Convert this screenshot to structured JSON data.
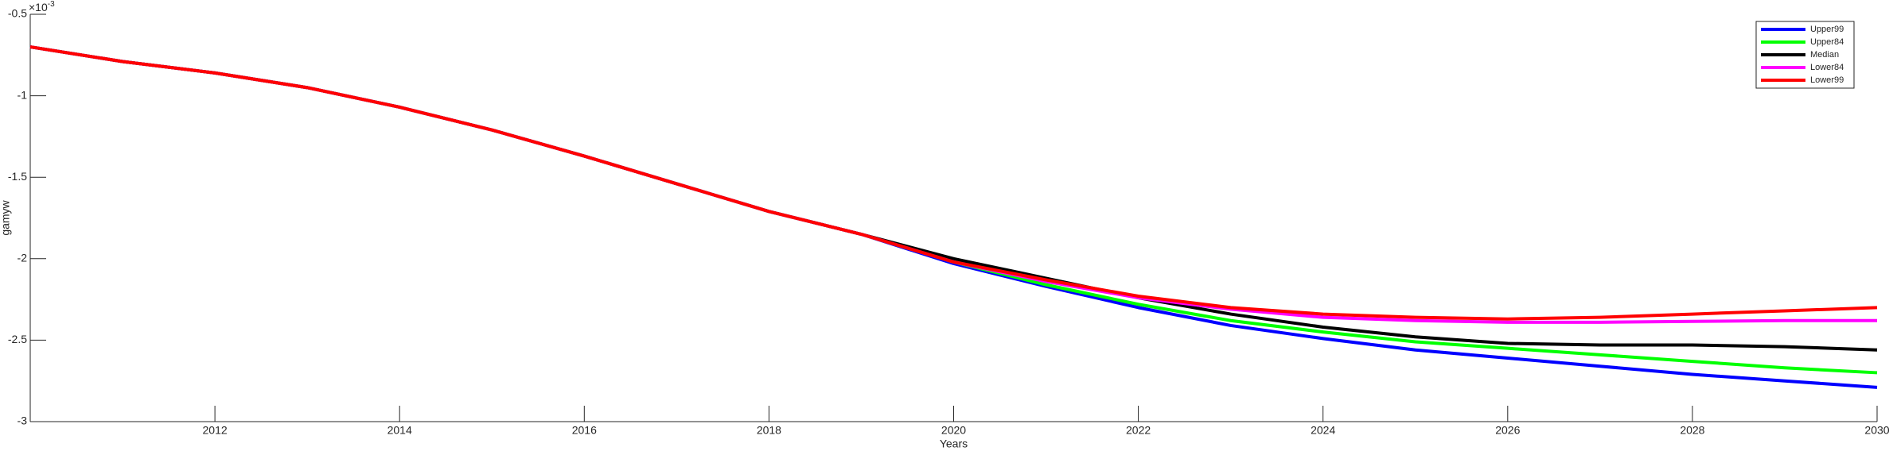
{
  "chart_data": {
    "type": "line",
    "x": [
      2010,
      2011,
      2012,
      2013,
      2014,
      2015,
      2016,
      2017,
      2018,
      2019,
      2020,
      2021,
      2022,
      2023,
      2024,
      2025,
      2026,
      2027,
      2028,
      2029,
      2030
    ],
    "series": [
      {
        "name": "Upper99",
        "color": "#0000ff",
        "values": [
          -0.7,
          -0.79,
          -0.86,
          -0.95,
          -1.07,
          -1.21,
          -1.37,
          -1.54,
          -1.71,
          -1.85,
          -2.03,
          -2.17,
          -2.3,
          -2.41,
          -2.49,
          -2.56,
          -2.61,
          -2.66,
          -2.71,
          -2.75,
          -2.79
        ]
      },
      {
        "name": "Upper84",
        "color": "#00ff00",
        "values": [
          -0.7,
          -0.79,
          -0.86,
          -0.95,
          -1.07,
          -1.21,
          -1.37,
          -1.54,
          -1.71,
          -1.85,
          -2.02,
          -2.16,
          -2.28,
          -2.38,
          -2.45,
          -2.51,
          -2.55,
          -2.59,
          -2.63,
          -2.67,
          -2.7
        ]
      },
      {
        "name": "Median",
        "color": "#000000",
        "values": [
          -0.7,
          -0.79,
          -0.86,
          -0.95,
          -1.07,
          -1.21,
          -1.37,
          -1.54,
          -1.71,
          -1.85,
          -2.0,
          -2.12,
          -2.24,
          -2.34,
          -2.42,
          -2.48,
          -2.52,
          -2.53,
          -2.53,
          -2.54,
          -2.56
        ]
      },
      {
        "name": "Lower84",
        "color": "#ff00ff",
        "values": [
          -0.7,
          -0.79,
          -0.86,
          -0.95,
          -1.07,
          -1.21,
          -1.37,
          -1.54,
          -1.71,
          -1.85,
          -2.02,
          -2.14,
          -2.24,
          -2.31,
          -2.36,
          -2.38,
          -2.39,
          -2.39,
          -2.385,
          -2.38,
          -2.38
        ]
      },
      {
        "name": "Lower99",
        "color": "#ff0000",
        "values": [
          -0.7,
          -0.79,
          -0.86,
          -0.95,
          -1.07,
          -1.21,
          -1.37,
          -1.54,
          -1.71,
          -1.85,
          -2.02,
          -2.13,
          -2.23,
          -2.3,
          -2.34,
          -2.36,
          -2.37,
          -2.36,
          -2.34,
          -2.32,
          -2.3
        ]
      }
    ],
    "xlim": [
      2010,
      2030
    ],
    "xticks": [
      2012,
      2014,
      2016,
      2018,
      2020,
      2022,
      2024,
      2026,
      2028,
      2030
    ],
    "ylim": [
      -3,
      -0.5
    ],
    "yticks": [
      -3,
      -2.5,
      -2,
      -1.5,
      -1,
      -0.5
    ],
    "y_multiplier": {
      "base": "×10",
      "exponent": "-3"
    },
    "xlabel": "Years",
    "ylabel": "gamyw",
    "legend": "northeast",
    "grid": false
  }
}
